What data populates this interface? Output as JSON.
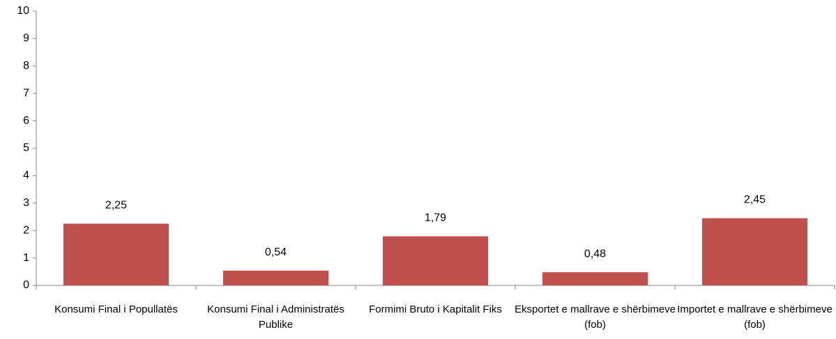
{
  "chart_data": {
    "type": "bar",
    "categories": [
      "Konsumi Final i Popullatës",
      "Konsumi Final i Administratës Publike",
      "Formimi Bruto i Kapitalit Fiks",
      "Eksportet e mallrave e shërbimeve (fob)",
      "Importet e mallrave e shërbimeve (fob)"
    ],
    "values": [
      2.25,
      0.54,
      1.79,
      0.48,
      2.45
    ],
    "value_labels": [
      "2,25",
      "0,54",
      "1,79",
      "0,48",
      "2,45"
    ],
    "color": "#c0504d",
    "ylim": [
      0,
      10
    ],
    "yticks": [
      0,
      1,
      2,
      3,
      4,
      5,
      6,
      7,
      8,
      9,
      10
    ],
    "grid": false
  }
}
